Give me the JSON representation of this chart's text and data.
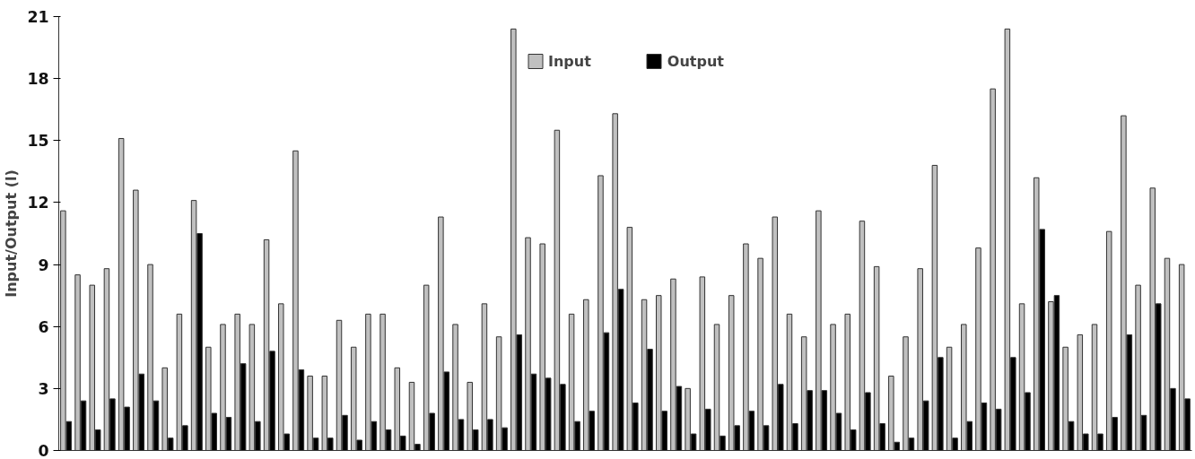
{
  "chart_data": {
    "type": "bar",
    "ylabel": "Input/Output (l)",
    "categories": [
      null,
      null,
      null,
      null,
      null,
      null,
      null,
      null,
      null,
      null,
      null,
      null,
      null,
      null,
      null,
      null,
      null,
      null,
      null,
      null,
      null,
      null,
      null,
      null,
      null,
      null,
      null,
      null,
      null,
      null,
      null,
      null,
      null,
      null,
      null,
      null,
      null,
      null,
      null,
      null,
      null,
      null,
      null,
      null,
      null,
      null,
      null,
      null,
      null,
      null,
      null,
      null,
      null,
      null,
      null,
      null,
      null,
      null,
      null,
      null,
      null,
      null,
      null,
      null,
      null,
      null,
      null,
      null,
      null,
      null,
      null,
      null,
      null,
      null,
      null,
      null,
      null,
      null
    ],
    "series": [
      {
        "name": "Input",
        "color": "#c0c0c0",
        "values": [
          11.6,
          8.5,
          8.0,
          8.8,
          15.1,
          12.6,
          9.0,
          4.0,
          6.6,
          12.1,
          5.0,
          6.1,
          6.6,
          6.1,
          10.2,
          7.1,
          14.5,
          3.6,
          3.6,
          6.3,
          5.0,
          6.6,
          6.6,
          4.0,
          3.3,
          8.0,
          11.3,
          6.1,
          3.3,
          7.1,
          5.5,
          20.4,
          10.3,
          10.0,
          15.5,
          6.6,
          7.3,
          13.3,
          16.3,
          10.8,
          7.3,
          7.5,
          8.3,
          3.0,
          8.4,
          6.1,
          7.5,
          10.0,
          9.3,
          11.3,
          6.6,
          5.5,
          11.6,
          6.1,
          6.6,
          11.1,
          8.9,
          3.6,
          5.5,
          8.8,
          13.8,
          5.0,
          6.1,
          9.8,
          17.5,
          20.4,
          7.1,
          13.2,
          7.2,
          5.0,
          5.6,
          6.1,
          10.6,
          16.2,
          8.0,
          12.7,
          9.3,
          9.0
        ]
      },
      {
        "name": "Output",
        "color": "#000000",
        "values": [
          1.4,
          2.4,
          1.0,
          2.5,
          2.1,
          3.7,
          2.4,
          0.6,
          1.2,
          10.5,
          1.8,
          1.6,
          4.2,
          1.4,
          4.8,
          0.8,
          3.9,
          0.6,
          0.6,
          1.7,
          0.5,
          1.4,
          1.0,
          0.7,
          0.3,
          1.8,
          3.8,
          1.5,
          1.0,
          1.5,
          1.1,
          5.6,
          3.7,
          3.5,
          3.2,
          1.4,
          1.9,
          5.7,
          7.8,
          2.3,
          4.9,
          1.9,
          3.1,
          0.8,
          2.0,
          0.7,
          1.2,
          1.9,
          1.2,
          3.2,
          1.3,
          2.9,
          2.9,
          1.8,
          1.0,
          2.8,
          1.3,
          0.4,
          0.6,
          2.4,
          4.5,
          0.6,
          1.4,
          2.3,
          2.0,
          4.5,
          2.8,
          10.7,
          7.5,
          1.4,
          0.8,
          0.8,
          1.6,
          5.6,
          1.7,
          7.1,
          3.0,
          2.5
        ]
      }
    ],
    "ylim": [
      0,
      21
    ],
    "yticks": [
      0,
      3,
      6,
      9,
      12,
      15,
      18,
      21
    ],
    "grid": false,
    "legend": "top"
  }
}
